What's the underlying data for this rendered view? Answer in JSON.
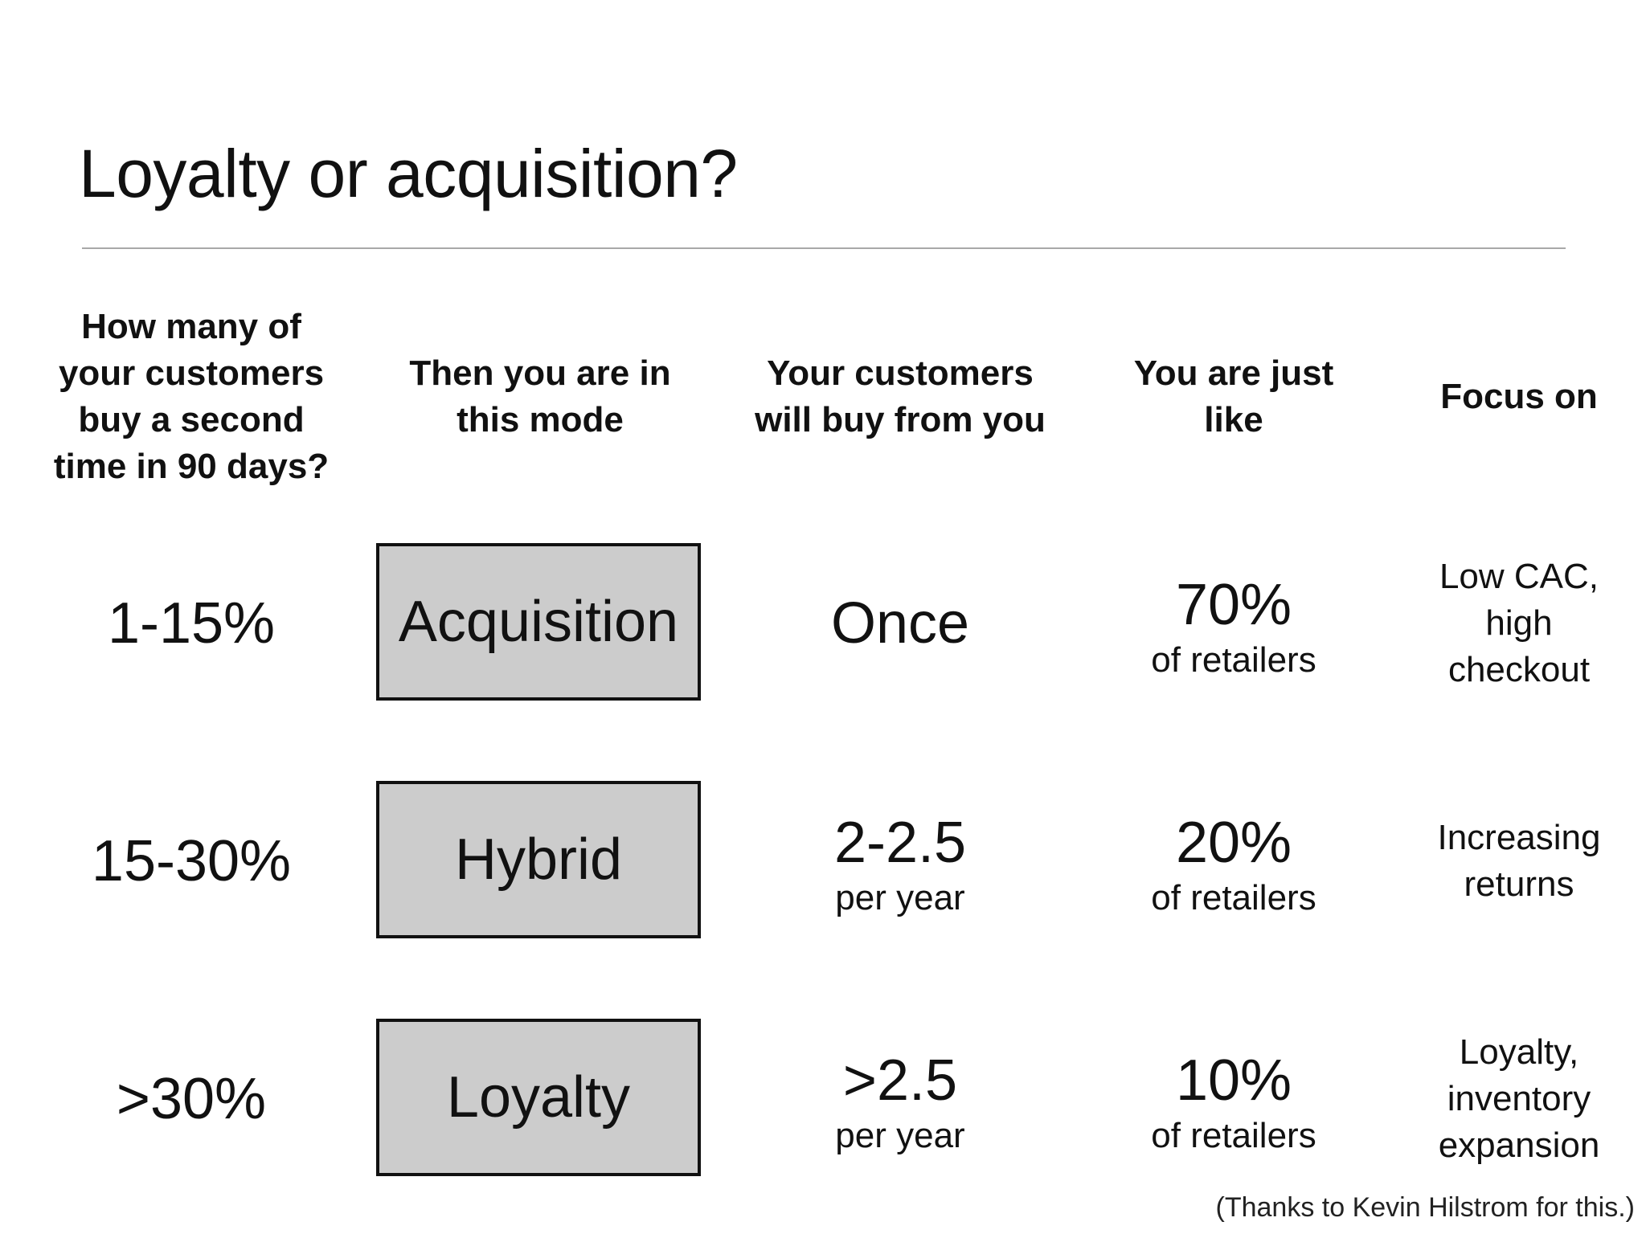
{
  "title": "Loyalty or acquisition?",
  "headers": [
    "How many of\nyour customers\nbuy a second\ntime in 90 days?",
    "Then you are in\nthis mode",
    "Your customers\nwill buy from you",
    "You are just\nlike",
    "Focus on"
  ],
  "rows": [
    {
      "rate": "1-15%",
      "mode": "Acquisition",
      "frequency_main": "Once",
      "frequency_sub": "",
      "share_main": "70%",
      "share_sub": "of retailers",
      "focus": "Low CAC,\nhigh\ncheckout"
    },
    {
      "rate": "15-30%",
      "mode": "Hybrid",
      "frequency_main": "2-2.5",
      "frequency_sub": "per year",
      "share_main": "20%",
      "share_sub": "of retailers",
      "focus": "Increasing\nreturns"
    },
    {
      "rate": ">30%",
      "mode": "Loyalty",
      "frequency_main": ">2.5",
      "frequency_sub": "per year",
      "share_main": "10%",
      "share_sub": "of retailers",
      "focus": "Loyalty,\ninventory\nexpansion"
    }
  ],
  "credit": "(Thanks to Kevin Hilstrom for this.)",
  "colors": {
    "mode_box_fill": "#cccccc",
    "rule": "#a8a8a8",
    "text": "#111111"
  }
}
